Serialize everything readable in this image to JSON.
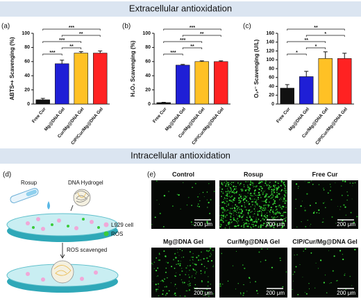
{
  "banners": [
    "Extracellular antioxidation",
    "Intracellular antioxidation"
  ],
  "chart_data": [
    {
      "type": "bar",
      "panel": "(a)",
      "ylabel": "ABTS•+ Scavenging (%)",
      "categories": [
        "Free Cur",
        "Mg@DNA Gel",
        "Cur/Mg@DNA Gel",
        "CIP/Cur/Mg@DNA Gel"
      ],
      "values": [
        6,
        57,
        72,
        72
      ],
      "errors": [
        2,
        5,
        2,
        3
      ],
      "colors": [
        "#111111",
        "#1f1fd6",
        "#ffc125",
        "#ff2222"
      ],
      "ylim": [
        0,
        100
      ],
      "yticks": [
        0,
        20,
        40,
        60,
        80,
        100
      ],
      "significance": [
        {
          "pair": [
            0,
            3
          ],
          "label": "***"
        },
        {
          "pair": [
            1,
            3
          ],
          "label": "**"
        },
        {
          "pair": [
            0,
            2
          ],
          "label": "***"
        },
        {
          "pair": [
            1,
            2
          ],
          "label": "**"
        },
        {
          "pair": [
            0,
            1
          ],
          "label": "***"
        }
      ]
    },
    {
      "type": "bar",
      "panel": "(b)",
      "ylabel": "H₂O₂ Scavenging (%)",
      "categories": [
        "Free Cur",
        "Mg@DNA Gel",
        "Cur/Mg@DNA Gel",
        "CIP/Cur/Mg@DNA Gel"
      ],
      "values": [
        2,
        55,
        60,
        60
      ],
      "errors": [
        0.5,
        1,
        1,
        1
      ],
      "colors": [
        "#111111",
        "#1f1fd6",
        "#ffc125",
        "#ff2222"
      ],
      "ylim": [
        0,
        100
      ],
      "yticks": [
        0,
        20,
        40,
        60,
        80,
        100
      ],
      "significance": [
        {
          "pair": [
            0,
            3
          ],
          "label": "***"
        },
        {
          "pair": [
            1,
            3
          ],
          "label": "**"
        },
        {
          "pair": [
            0,
            2
          ],
          "label": "***"
        },
        {
          "pair": [
            1,
            2
          ],
          "label": "**"
        },
        {
          "pair": [
            0,
            1
          ],
          "label": "***"
        }
      ]
    },
    {
      "type": "bar",
      "panel": "(c)",
      "ylabel": "O₂•⁻ Scavenging (U/L)",
      "categories": [
        "Free Cur",
        "Mg@DNA Gel",
        "Cur/Mg@DNA Gel",
        "CIP/Cur/Mg@DNA Gel"
      ],
      "values": [
        36,
        62,
        103,
        103
      ],
      "errors": [
        8,
        12,
        15,
        12
      ],
      "colors": [
        "#111111",
        "#1f1fd6",
        "#ffc125",
        "#ff2222"
      ],
      "ylim": [
        0,
        160
      ],
      "yticks": [
        0,
        20,
        40,
        60,
        80,
        100,
        120,
        140,
        160
      ],
      "significance": [
        {
          "pair": [
            0,
            3
          ],
          "label": "**"
        },
        {
          "pair": [
            1,
            3
          ],
          "label": "*"
        },
        {
          "pair": [
            0,
            2
          ],
          "label": "**"
        },
        {
          "pair": [
            1,
            2
          ],
          "label": "*"
        },
        {
          "pair": [
            0,
            1
          ],
          "label": "*"
        }
      ]
    }
  ],
  "diagram": {
    "panel": "(d)",
    "rosup": "Rosup",
    "hydrogel": "DNA Hydrogel",
    "cell": "L929 cell",
    "ros": "ROS",
    "arrow": "ROS scavenged"
  },
  "micrographs": {
    "panel": "(e)",
    "items": [
      {
        "title": "Control",
        "scale": "200 μm"
      },
      {
        "title": "Rosup",
        "scale": "200 μm"
      },
      {
        "title": "Free Cur",
        "scale": "200 μm"
      },
      {
        "title": "Mg@DNA Gel",
        "scale": "200 μm"
      },
      {
        "title": "Cur/Mg@DNA Gel",
        "scale": "200 μm"
      },
      {
        "title": "CIP/Cur/Mg@DNA Gel",
        "scale": "200 μm"
      }
    ]
  }
}
